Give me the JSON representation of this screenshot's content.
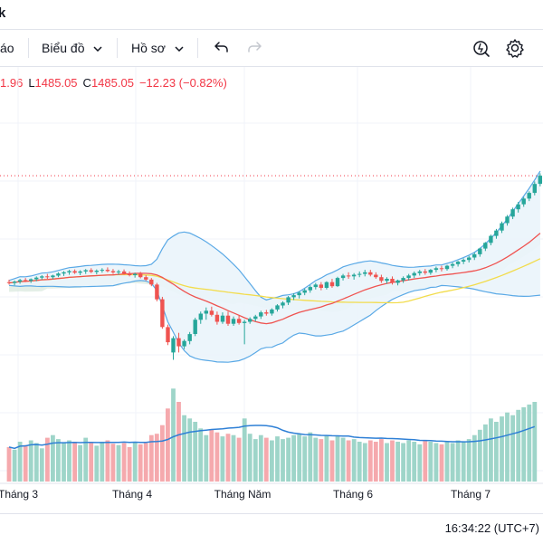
{
  "header": {
    "fragment": "k"
  },
  "toolbar": {
    "partial_item": "áo",
    "chart_label": "Biểu đồ",
    "profile_label": "Hồ sơ"
  },
  "ohlc": {
    "o_value": "1.96",
    "l_label": "L",
    "l_value": "1485.05",
    "c_label": "C",
    "c_value": "1485.05",
    "change": "−12.23 (−0.82%)"
  },
  "colors": {
    "up": "#26a69a",
    "down": "#ef5350",
    "vol_up": "#9ed5c9",
    "vol_down": "#f5a9ad",
    "bb_line": "#5aa9e6",
    "bb_fill": "#eaf4fb",
    "ma_fast": "#ef5350",
    "ma_slow": "#f2dc4c",
    "vol_ma": "#2f80d6",
    "cloud": "#d8e8dd",
    "price_line": "#f23645"
  },
  "chart_data": {
    "type": "candlestick",
    "x_tick_labels": [
      "Tháng 3",
      "Tháng 4",
      "Tháng Năm",
      "Tháng 6",
      "Tháng 7"
    ],
    "ohlc": [
      [
        1232,
        1238,
        1226,
        1230
      ],
      [
        1230,
        1236,
        1224,
        1233
      ],
      [
        1233,
        1240,
        1228,
        1237
      ],
      [
        1237,
        1242,
        1232,
        1235
      ],
      [
        1235,
        1241,
        1230,
        1239
      ],
      [
        1239,
        1246,
        1234,
        1243
      ],
      [
        1243,
        1249,
        1238,
        1246
      ],
      [
        1246,
        1252,
        1240,
        1244
      ],
      [
        1244,
        1250,
        1239,
        1248
      ],
      [
        1248,
        1256,
        1244,
        1253
      ],
      [
        1253,
        1259,
        1247,
        1256
      ],
      [
        1256,
        1262,
        1250,
        1259
      ],
      [
        1259,
        1263,
        1252,
        1255
      ],
      [
        1255,
        1261,
        1249,
        1258
      ],
      [
        1258,
        1264,
        1252,
        1261
      ],
      [
        1261,
        1266,
        1254,
        1257
      ],
      [
        1257,
        1263,
        1251,
        1260
      ],
      [
        1260,
        1266,
        1255,
        1262
      ],
      [
        1262,
        1268,
        1256,
        1259
      ],
      [
        1259,
        1264,
        1252,
        1256
      ],
      [
        1256,
        1262,
        1250,
        1258
      ],
      [
        1258,
        1263,
        1250,
        1253
      ],
      [
        1253,
        1258,
        1246,
        1249
      ],
      [
        1249,
        1255,
        1243,
        1252
      ],
      [
        1252,
        1257,
        1241,
        1244
      ],
      [
        1244,
        1249,
        1235,
        1238
      ],
      [
        1238,
        1242,
        1222,
        1226
      ],
      [
        1226,
        1230,
        1185,
        1190
      ],
      [
        1190,
        1196,
        1118,
        1122
      ],
      [
        1122,
        1128,
        1078,
        1085
      ],
      [
        1060,
        1100,
        1042,
        1095
      ],
      [
        1095,
        1108,
        1060,
        1075
      ],
      [
        1075,
        1092,
        1068,
        1088
      ],
      [
        1088,
        1110,
        1080,
        1105
      ],
      [
        1105,
        1145,
        1100,
        1140
      ],
      [
        1140,
        1160,
        1130,
        1155
      ],
      [
        1155,
        1170,
        1140,
        1162
      ],
      [
        1162,
        1172,
        1148,
        1152
      ],
      [
        1152,
        1160,
        1128,
        1135
      ],
      [
        1135,
        1158,
        1130,
        1150
      ],
      [
        1150,
        1160,
        1125,
        1130
      ],
      [
        1130,
        1148,
        1125,
        1142
      ],
      [
        1142,
        1150,
        1128,
        1132
      ],
      [
        1132,
        1140,
        1080,
        1135
      ],
      [
        1135,
        1146,
        1130,
        1142
      ],
      [
        1142,
        1152,
        1136,
        1148
      ],
      [
        1148,
        1162,
        1142,
        1158
      ],
      [
        1158,
        1164,
        1150,
        1155
      ],
      [
        1155,
        1168,
        1150,
        1165
      ],
      [
        1165,
        1178,
        1160,
        1175
      ],
      [
        1175,
        1185,
        1168,
        1182
      ],
      [
        1182,
        1198,
        1176,
        1195
      ],
      [
        1195,
        1205,
        1188,
        1200
      ],
      [
        1200,
        1210,
        1192,
        1206
      ],
      [
        1206,
        1216,
        1200,
        1212
      ],
      [
        1212,
        1224,
        1206,
        1220
      ],
      [
        1220,
        1230,
        1214,
        1226
      ],
      [
        1226,
        1232,
        1212,
        1218
      ],
      [
        1218,
        1234,
        1214,
        1232
      ],
      [
        1232,
        1240,
        1218,
        1222
      ],
      [
        1222,
        1245,
        1220,
        1242
      ],
      [
        1242,
        1252,
        1236,
        1248
      ],
      [
        1248,
        1256,
        1240,
        1246
      ],
      [
        1246,
        1254,
        1238,
        1250
      ],
      [
        1250,
        1258,
        1244,
        1252
      ],
      [
        1252,
        1262,
        1246,
        1256
      ],
      [
        1256,
        1262,
        1246,
        1250
      ],
      [
        1250,
        1256,
        1240,
        1244
      ],
      [
        1244,
        1250,
        1230,
        1235
      ],
      [
        1235,
        1244,
        1228,
        1240
      ],
      [
        1240,
        1246,
        1226,
        1230
      ],
      [
        1230,
        1238,
        1224,
        1236
      ],
      [
        1236,
        1246,
        1230,
        1242
      ],
      [
        1242,
        1252,
        1236,
        1248
      ],
      [
        1248,
        1258,
        1242,
        1254
      ],
      [
        1254,
        1262,
        1248,
        1258
      ],
      [
        1258,
        1264,
        1250,
        1255
      ],
      [
        1255,
        1264,
        1250,
        1262
      ],
      [
        1262,
        1270,
        1256,
        1266
      ],
      [
        1266,
        1272,
        1258,
        1264
      ],
      [
        1264,
        1274,
        1260,
        1272
      ],
      [
        1272,
        1280,
        1266,
        1276
      ],
      [
        1276,
        1284,
        1270,
        1282
      ],
      [
        1282,
        1290,
        1276,
        1286
      ],
      [
        1286,
        1296,
        1280,
        1292
      ],
      [
        1292,
        1304,
        1286,
        1300
      ],
      [
        1300,
        1316,
        1294,
        1314
      ],
      [
        1314,
        1330,
        1308,
        1328
      ],
      [
        1328,
        1348,
        1322,
        1345
      ],
      [
        1345,
        1362,
        1338,
        1358
      ],
      [
        1358,
        1380,
        1352,
        1376
      ],
      [
        1376,
        1396,
        1370,
        1392
      ],
      [
        1392,
        1414,
        1386,
        1410
      ],
      [
        1410,
        1428,
        1402,
        1422
      ],
      [
        1422,
        1440,
        1416,
        1436
      ],
      [
        1436,
        1454,
        1430,
        1450
      ],
      [
        1450,
        1478,
        1444,
        1472
      ],
      [
        1472,
        1498,
        1466,
        1492
      ]
    ],
    "volume": [
      52,
      48,
      60,
      55,
      62,
      58,
      50,
      66,
      70,
      64,
      58,
      62,
      60,
      55,
      66,
      58,
      54,
      60,
      62,
      57,
      55,
      58,
      52,
      60,
      56,
      58,
      70,
      72,
      85,
      110,
      140,
      120,
      100,
      95,
      90,
      80,
      70,
      78,
      74,
      68,
      72,
      70,
      66,
      95,
      72,
      64,
      70,
      66,
      62,
      68,
      64,
      66,
      70,
      72,
      68,
      74,
      66,
      64,
      70,
      62,
      68,
      66,
      62,
      64,
      60,
      58,
      62,
      60,
      64,
      58,
      62,
      60,
      58,
      62,
      60,
      56,
      62,
      60,
      58,
      56,
      60,
      58,
      62,
      60,
      64,
      70,
      78,
      86,
      95,
      90,
      98,
      104,
      100,
      108,
      112,
      116,
      120
    ]
  }
}
